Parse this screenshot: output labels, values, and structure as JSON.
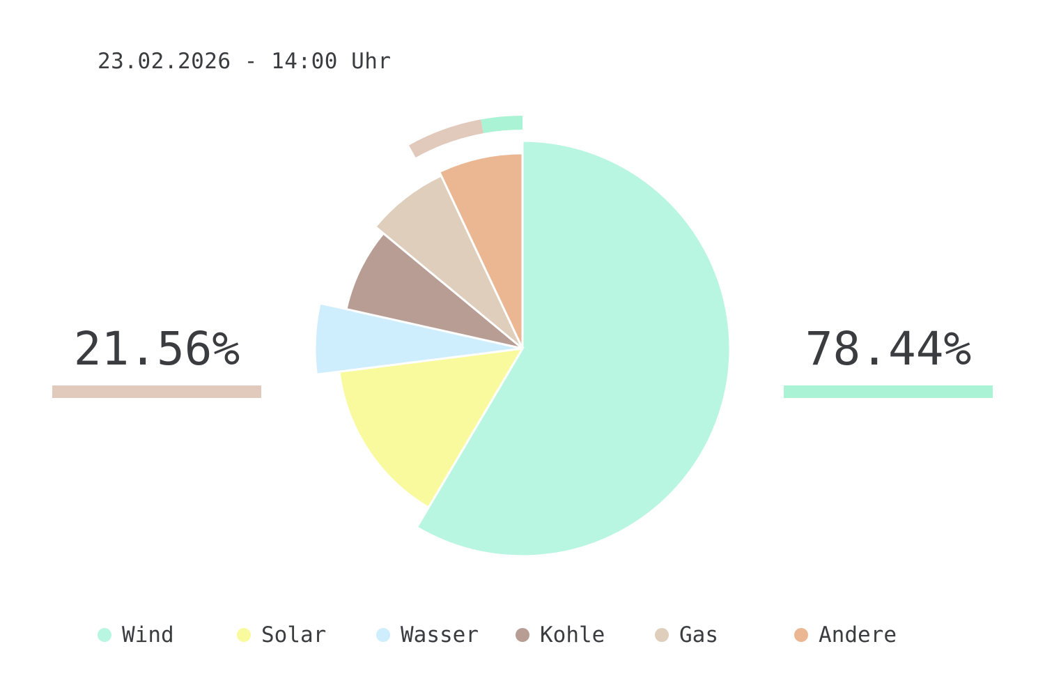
{
  "timestamp": "23.02.2026 - 14:00 Uhr",
  "summary": {
    "left": {
      "value": "21.56%",
      "color": "#e1c9bb"
    },
    "right": {
      "value": "78.44%",
      "color": "#abf3d5"
    }
  },
  "chart_data": {
    "type": "pie",
    "series": [
      {
        "name": "Wind",
        "value": 58.5,
        "color": "#b9f6e1"
      },
      {
        "name": "Solar",
        "value": 14.5,
        "color": "#f9fa9e"
      },
      {
        "name": "Wasser",
        "value": 5.5,
        "color": "#cfeefd"
      },
      {
        "name": "Kohle",
        "value": 7.5,
        "color": "#b89d94"
      },
      {
        "name": "Gas",
        "value": 7.0,
        "color": "#dfcebc"
      },
      {
        "name": "Andere",
        "value": 7.0,
        "color": "#ebb793"
      }
    ],
    "outer_ring": [
      {
        "value": 78.44,
        "color": "#abf3d5"
      },
      {
        "value": 21.56,
        "color": "#e1c9bb"
      }
    ],
    "legend_position": "bottom"
  }
}
